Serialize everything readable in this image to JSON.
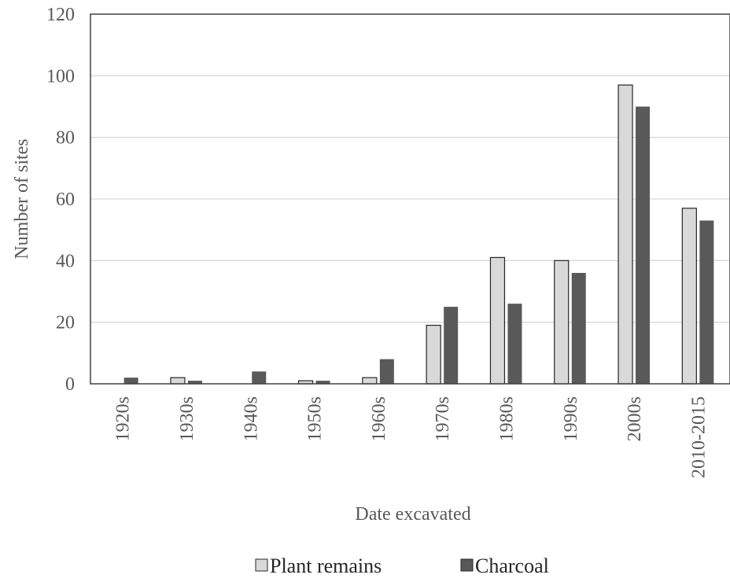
{
  "chart_data": {
    "type": "bar",
    "title": "",
    "xlabel": "Date excavated",
    "ylabel": "Number of sites",
    "ylim": [
      0,
      120
    ],
    "yticks": [
      0,
      20,
      40,
      60,
      80,
      100,
      120
    ],
    "grid": true,
    "legend_position": "bottom",
    "categories": [
      "1920s",
      "1930s",
      "1940s",
      "1950s",
      "1960s",
      "1970s",
      "1980s",
      "1990s",
      "2000s",
      "2010-2015"
    ],
    "series": [
      {
        "name": "Plant remains",
        "color": "#d9d9d9",
        "values": [
          0,
          2,
          0,
          1,
          2,
          19,
          41,
          40,
          97,
          57
        ]
      },
      {
        "name": "Charcoal",
        "color": "#595959",
        "values": [
          2,
          1,
          4,
          1,
          8,
          25,
          26,
          36,
          90,
          53
        ]
      }
    ]
  }
}
